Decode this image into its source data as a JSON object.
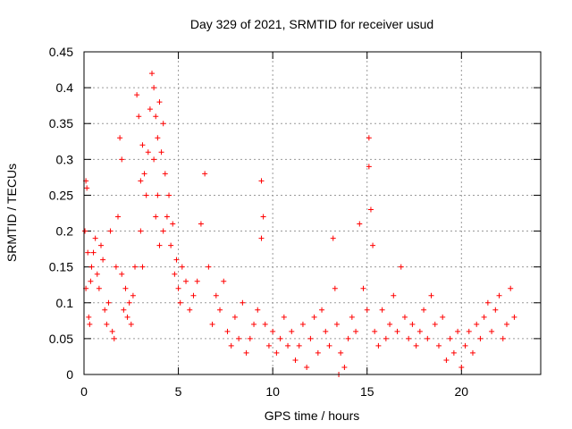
{
  "chart_data": {
    "type": "scatter",
    "title": "Day 329 of 2021, SRMTID for receiver usud",
    "xlabel": "GPS time / hours",
    "ylabel": "SRMTID / TECUs",
    "xlim": [
      0,
      24.2
    ],
    "ylim": [
      0,
      0.45
    ],
    "x_ticks": [
      0,
      5,
      10,
      15,
      20
    ],
    "x_tick_labels": [
      "0",
      "5",
      "10",
      "15",
      "20"
    ],
    "y_ticks": [
      0,
      0.05,
      0.1,
      0.15,
      0.2,
      0.25,
      0.3,
      0.35,
      0.4,
      0.45
    ],
    "y_tick_labels": [
      "0",
      "0.05",
      "0.1",
      "0.15",
      "0.2",
      "0.25",
      "0.3",
      "0.35",
      "0.4",
      "0.45"
    ],
    "grid": true,
    "marker": "+",
    "marker_color": "#ff0000",
    "series": [
      {
        "name": "SRMTID",
        "x": [
          0.05,
          0.1,
          0.1,
          0.15,
          0.2,
          0.25,
          0.3,
          0.35,
          0.4,
          0.5,
          0.6,
          0.7,
          0.8,
          0.9,
          1.0,
          1.1,
          1.2,
          1.3,
          1.4,
          1.5,
          1.6,
          1.7,
          1.8,
          1.9,
          2.0,
          2.0,
          2.1,
          2.2,
          2.3,
          2.4,
          2.5,
          2.6,
          2.7,
          2.8,
          2.9,
          3.0,
          3.0,
          3.1,
          3.1,
          3.2,
          3.3,
          3.4,
          3.5,
          3.6,
          3.7,
          3.7,
          3.8,
          3.8,
          3.9,
          3.9,
          4.0,
          4.0,
          4.1,
          4.2,
          4.2,
          4.3,
          4.4,
          4.5,
          4.6,
          4.7,
          4.8,
          4.9,
          5.0,
          5.1,
          5.2,
          5.4,
          5.6,
          5.8,
          6.0,
          6.2,
          6.4,
          6.6,
          6.8,
          7.0,
          7.2,
          7.4,
          7.6,
          7.8,
          8.0,
          8.2,
          8.4,
          8.6,
          8.8,
          9.0,
          9.2,
          9.4,
          9.4,
          9.5,
          9.6,
          9.8,
          10.0,
          10.2,
          10.4,
          10.6,
          10.8,
          11.0,
          11.2,
          11.4,
          11.6,
          11.8,
          12.0,
          12.2,
          12.4,
          12.6,
          12.8,
          13.0,
          13.2,
          13.3,
          13.4,
          13.5,
          13.6,
          13.8,
          14.0,
          14.2,
          14.4,
          14.6,
          14.8,
          15.0,
          15.1,
          15.1,
          15.2,
          15.3,
          15.4,
          15.6,
          15.8,
          16.0,
          16.2,
          16.4,
          16.6,
          16.8,
          17.0,
          17.2,
          17.4,
          17.6,
          17.8,
          18.0,
          18.2,
          18.4,
          18.6,
          18.8,
          19.0,
          19.2,
          19.4,
          19.6,
          19.8,
          20.0,
          20.2,
          20.4,
          20.6,
          20.8,
          21.0,
          21.2,
          21.4,
          21.6,
          21.8,
          22.0,
          22.2,
          22.4,
          22.6,
          22.8
        ],
        "y": [
          0.2,
          0.27,
          0.12,
          0.26,
          0.17,
          0.08,
          0.07,
          0.13,
          0.15,
          0.17,
          0.19,
          0.14,
          0.12,
          0.18,
          0.16,
          0.09,
          0.07,
          0.1,
          0.2,
          0.06,
          0.05,
          0.15,
          0.22,
          0.33,
          0.3,
          0.14,
          0.09,
          0.12,
          0.08,
          0.1,
          0.07,
          0.11,
          0.15,
          0.39,
          0.36,
          0.27,
          0.2,
          0.32,
          0.15,
          0.28,
          0.25,
          0.31,
          0.37,
          0.42,
          0.4,
          0.3,
          0.36,
          0.22,
          0.33,
          0.25,
          0.38,
          0.18,
          0.31,
          0.35,
          0.2,
          0.28,
          0.22,
          0.25,
          0.18,
          0.21,
          0.14,
          0.16,
          0.12,
          0.1,
          0.15,
          0.13,
          0.09,
          0.11,
          0.13,
          0.21,
          0.28,
          0.15,
          0.07,
          0.11,
          0.09,
          0.13,
          0.06,
          0.04,
          0.08,
          0.05,
          0.1,
          0.03,
          0.05,
          0.07,
          0.09,
          0.27,
          0.19,
          0.22,
          0.07,
          0.04,
          0.06,
          0.03,
          0.05,
          0.08,
          0.04,
          0.06,
          0.02,
          0.04,
          0.07,
          0.01,
          0.05,
          0.08,
          0.03,
          0.09,
          0.06,
          0.04,
          0.19,
          0.12,
          0.07,
          0.0,
          0.03,
          0.01,
          0.05,
          0.08,
          0.06,
          0.21,
          0.12,
          0.09,
          0.33,
          0.29,
          0.23,
          0.18,
          0.06,
          0.04,
          0.09,
          0.05,
          0.07,
          0.11,
          0.06,
          0.15,
          0.08,
          0.05,
          0.07,
          0.04,
          0.06,
          0.09,
          0.05,
          0.11,
          0.07,
          0.04,
          0.08,
          0.02,
          0.05,
          0.03,
          0.06,
          0.01,
          0.04,
          0.06,
          0.03,
          0.07,
          0.05,
          0.08,
          0.1,
          0.06,
          0.09,
          0.11,
          0.05,
          0.07,
          0.12,
          0.08
        ]
      }
    ]
  }
}
